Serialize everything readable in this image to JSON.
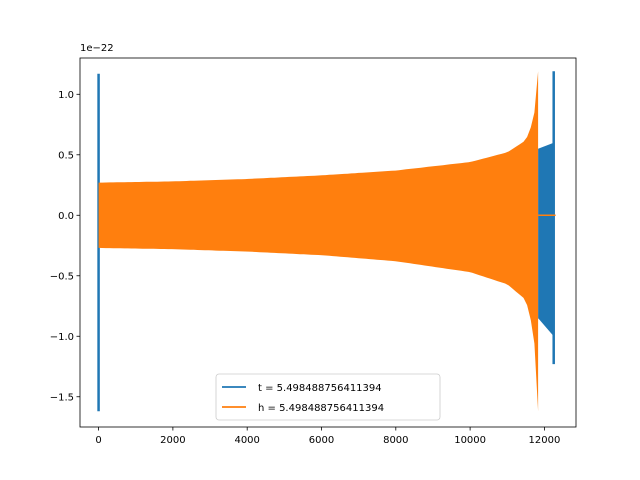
{
  "chart_data": {
    "type": "line",
    "title": "",
    "xlabel": "",
    "ylabel": "",
    "y_scale_label": "1e−22",
    "xlim": [
      -500,
      12850
    ],
    "ylim": [
      -1.75,
      1.3
    ],
    "x_ticks": [
      0,
      2000,
      4000,
      6000,
      8000,
      10000,
      12000
    ],
    "x_tick_labels": [
      "0",
      "2000",
      "4000",
      "6000",
      "8000",
      "10000",
      "12000"
    ],
    "y_ticks": [
      -1.5,
      -1.0,
      -0.5,
      0.0,
      0.5,
      1.0
    ],
    "y_tick_labels": [
      "−1.5",
      "−1.0",
      "−0.5",
      "0.0",
      "0.5",
      "1.0"
    ],
    "grid": false,
    "legend_position": "lower-center",
    "series": [
      {
        "name": "t = 5.498488756411394",
        "color": "#1f77b4",
        "envelope": {
          "start_spike": {
            "x": 0,
            "max": 1.17,
            "min": -1.62
          },
          "band_segments": [
            {
              "x_start": 11830,
              "x_end": 12250,
              "upper": [
                0.55,
                0.6
              ],
              "lower": [
                -0.85,
                -1.0
              ]
            }
          ],
          "end_spike": {
            "x": 12250,
            "max": 1.19,
            "min": -1.23
          },
          "flat_after": {
            "x_start": 12250,
            "x_end": 12300,
            "value": 0.0
          }
        }
      },
      {
        "name": "h = 5.498488756411394",
        "color": "#ff7f0e",
        "envelope": {
          "upper": [
            [
              0,
              0.27
            ],
            [
              2000,
              0.28
            ],
            [
              4000,
              0.3
            ],
            [
              6000,
              0.33
            ],
            [
              8000,
              0.37
            ],
            [
              10000,
              0.44
            ],
            [
              11000,
              0.52
            ],
            [
              11500,
              0.62
            ],
            [
              11700,
              0.78
            ],
            [
              11800,
              1.0
            ],
            [
              11830,
              1.19
            ]
          ],
          "lower": [
            [
              0,
              -0.27
            ],
            [
              2000,
              -0.28
            ],
            [
              4000,
              -0.3
            ],
            [
              6000,
              -0.33
            ],
            [
              8000,
              -0.38
            ],
            [
              10000,
              -0.47
            ],
            [
              11000,
              -0.57
            ],
            [
              11500,
              -0.7
            ],
            [
              11700,
              -0.95
            ],
            [
              11800,
              -1.3
            ],
            [
              11830,
              -1.62
            ]
          ],
          "flat_after": {
            "x_start": 11830,
            "x_end": 12300,
            "value": 0.0
          }
        }
      }
    ]
  }
}
